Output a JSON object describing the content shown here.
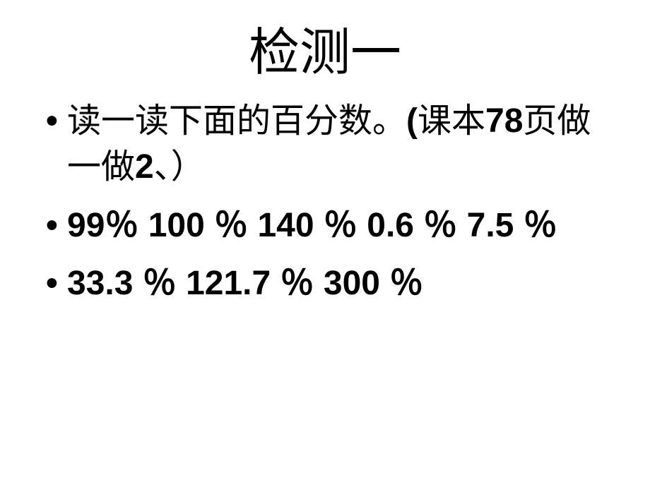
{
  "slide": {
    "title": "检测一",
    "bullets": [
      {
        "prefix_cjk": "读一读下面的百分数。",
        "paren_open": "(",
        "mid_cjk": "课本",
        "num1": "78",
        "mid_cjk2": "页做一做",
        "num2": "2",
        "suffix_cjk": "、）"
      },
      {
        "text": "99％  100 ％ 140 ％ 0.6 ％ 7.5 ％"
      },
      {
        "text": "33.3 ％ 121.7 ％  300 ％"
      }
    ],
    "title_fontsize": 72,
    "body_fontsize": 48,
    "text_color": "#000000",
    "background_color": "#ffffff"
  }
}
